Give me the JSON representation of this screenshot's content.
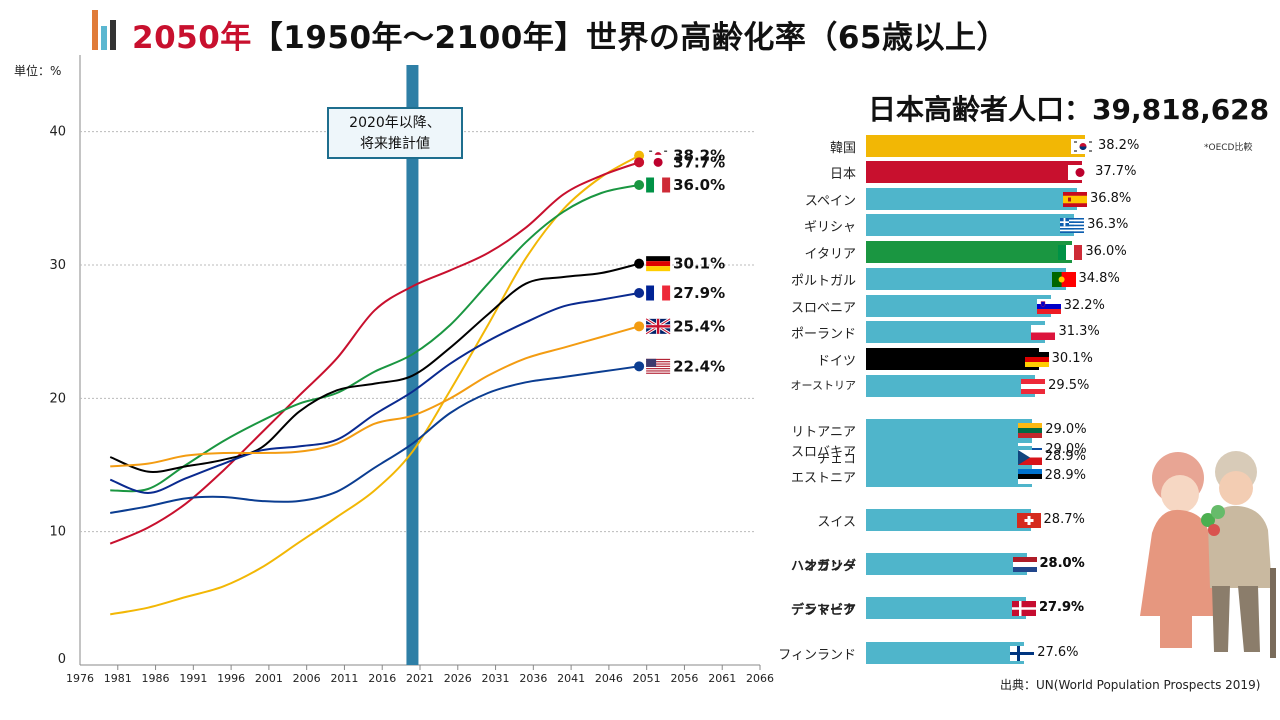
{
  "title": {
    "highlight": "2050年",
    "rest": "【1950年～2100年】世界の高齢化率（65歳以上）"
  },
  "unit_label": "単位：%",
  "projection_box": {
    "line1": "2020年以降、",
    "line2": "将来推計値"
  },
  "population": {
    "label": "日本高齢者人口：",
    "value": "39,818,628"
  },
  "oecd_note": "*OECD比較",
  "source": "出典：UN(World Population Prospects 2019)",
  "chart_data": [
    {
      "type": "line",
      "xlabel": "",
      "ylabel": "単位：%",
      "x_ticks": [
        "1976",
        "1981",
        "1986",
        "1991",
        "1996",
        "2001",
        "2006",
        "2011",
        "2016",
        "2021",
        "2026",
        "2031",
        "2036",
        "2041",
        "2046",
        "2051",
        "2056",
        "2061",
        "2066"
      ],
      "y_ticks": [
        "0",
        "10",
        "20",
        "30",
        "40"
      ],
      "xlim": [
        1976,
        2066
      ],
      "ylim": [
        0,
        45
      ],
      "grid": true,
      "projection_start": 2020,
      "series": [
        {
          "name": "韓国",
          "color": "#f2b705",
          "end_label": "38.2%",
          "flag": "kr",
          "x": [
            1980,
            1985,
            1990,
            1995,
            2000,
            2005,
            2010,
            2015,
            2020,
            2025,
            2030,
            2035,
            2040,
            2045,
            2050
          ],
          "y": [
            3.8,
            4.3,
            5.1,
            5.9,
            7.3,
            9.2,
            11.1,
            13.1,
            16.0,
            20.6,
            25.5,
            30.5,
            34.2,
            36.6,
            38.2
          ]
        },
        {
          "name": "日本",
          "color": "#c8102e",
          "end_label": "37.7%",
          "flag": "jp",
          "x": [
            1980,
            1985,
            1990,
            1995,
            2000,
            2005,
            2010,
            2015,
            2020,
            2025,
            2030,
            2035,
            2040,
            2045,
            2050
          ],
          "y": [
            9.1,
            10.3,
            12.1,
            14.6,
            17.4,
            20.2,
            23.0,
            26.6,
            28.4,
            29.6,
            30.9,
            32.8,
            35.3,
            36.7,
            37.7
          ]
        },
        {
          "name": "イタリア",
          "color": "#1a9641",
          "end_label": "36.0%",
          "flag": "it",
          "x": [
            1980,
            1985,
            1990,
            1995,
            2000,
            2005,
            2010,
            2015,
            2020,
            2025,
            2030,
            2035,
            2040,
            2045,
            2050
          ],
          "y": [
            13.1,
            13.2,
            15.0,
            16.8,
            18.3,
            19.6,
            20.4,
            22.0,
            23.3,
            25.5,
            28.6,
            31.7,
            34.0,
            35.4,
            36.0
          ]
        },
        {
          "name": "ドイツ",
          "color": "#000000",
          "end_label": "30.1%",
          "flag": "de",
          "x": [
            1980,
            1985,
            1990,
            1995,
            2000,
            2005,
            2010,
            2015,
            2020,
            2025,
            2030,
            2035,
            2040,
            2045,
            2050
          ],
          "y": [
            15.6,
            14.5,
            14.9,
            15.4,
            16.3,
            19.0,
            20.6,
            21.1,
            21.7,
            23.8,
            26.3,
            28.6,
            29.1,
            29.4,
            30.1
          ]
        },
        {
          "name": "フランス",
          "color": "#0a2a8f",
          "end_label": "27.9%",
          "flag": "fr",
          "x": [
            1980,
            1985,
            1990,
            1995,
            2000,
            2005,
            2010,
            2015,
            2020,
            2025,
            2030,
            2035,
            2040,
            2045,
            2050
          ],
          "y": [
            13.9,
            12.9,
            14.0,
            15.1,
            16.1,
            16.4,
            16.9,
            18.8,
            20.5,
            22.6,
            24.3,
            25.7,
            26.9,
            27.4,
            27.9
          ]
        },
        {
          "name": "イギリス",
          "color": "#f39c12",
          "end_label": "25.4%",
          "flag": "gb",
          "x": [
            1980,
            1985,
            1990,
            1995,
            2000,
            2005,
            2010,
            2015,
            2020,
            2025,
            2030,
            2035,
            2040,
            2045,
            2050
          ],
          "y": [
            14.9,
            15.1,
            15.7,
            15.9,
            15.9,
            16.0,
            16.6,
            18.1,
            18.7,
            20.0,
            21.7,
            23.0,
            23.8,
            24.6,
            25.4
          ]
        },
        {
          "name": "アメリカ",
          "color": "#0b3d91",
          "end_label": "22.4%",
          "flag": "us",
          "x": [
            1980,
            1985,
            1990,
            1995,
            2000,
            2005,
            2010,
            2015,
            2020,
            2025,
            2030,
            2035,
            2040,
            2045,
            2050
          ],
          "y": [
            11.4,
            11.9,
            12.5,
            12.6,
            12.3,
            12.3,
            13.0,
            14.8,
            16.6,
            18.9,
            20.4,
            21.2,
            21.6,
            22.0,
            22.4
          ]
        }
      ]
    },
    {
      "type": "bar",
      "orientation": "horizontal",
      "xlim": [
        0,
        40
      ],
      "categories": [
        "韓国",
        "日本",
        "スペイン",
        "ギリシャ",
        "イタリア",
        "ポルトガル",
        "スロベニア",
        "ポーランド",
        "ドイツ",
        "オーストリア",
        "リトアニア",
        "スロバキア",
        "チェコ",
        "エストニア",
        "スイス",
        "ハンガリー",
        "オランダ",
        "ラトビア",
        "デンマーク",
        "フィンランド"
      ],
      "values": [
        38.2,
        37.7,
        36.8,
        36.3,
        36.0,
        34.8,
        32.2,
        31.3,
        30.1,
        29.5,
        29.0,
        29.0,
        28.9,
        28.9,
        28.7,
        28.0,
        28.0,
        27.9,
        27.9,
        27.6
      ],
      "value_labels": [
        "38.2%",
        "37.7%",
        "36.8%",
        "36.3%",
        "36.0%",
        "34.8%",
        "32.2%",
        "31.3%",
        "30.1%",
        "29.5%",
        "29.0%",
        "29.0%",
        "28.9%",
        "28.9%",
        "28.7%",
        "28.0%",
        "28.0%",
        "27.9%",
        "27.9%",
        "27.6%"
      ],
      "colors": [
        "#f2b705",
        "#c8102e",
        "#4fb5cb",
        "#4fb5cb",
        "#1a9641",
        "#4fb5cb",
        "#4fb5cb",
        "#4fb5cb",
        "#000000",
        "#4fb5cb",
        "#4fb5cb",
        "#4fb5cb",
        "#4fb5cb",
        "#4fb5cb",
        "#4fb5cb",
        "#4fb5cb",
        "#4fb5cb",
        "#4fb5cb",
        "#4fb5cb",
        "#4fb5cb"
      ],
      "flags": [
        "kr",
        "jp",
        "es",
        "gr",
        "it",
        "pt",
        "si",
        "pl",
        "de",
        "at",
        "lt",
        "sk",
        "cz",
        "ee",
        "ch",
        "hu",
        "nl",
        "lv",
        "dk",
        "fi"
      ],
      "label_styles": [
        "normal",
        "normal",
        "normal",
        "normal",
        "normal",
        "normal",
        "normal",
        "normal",
        "normal",
        "small",
        "normal",
        "normal",
        "normal",
        "normal",
        "normal",
        "bold",
        "bold",
        "bold",
        "bold",
        "normal"
      ]
    }
  ]
}
